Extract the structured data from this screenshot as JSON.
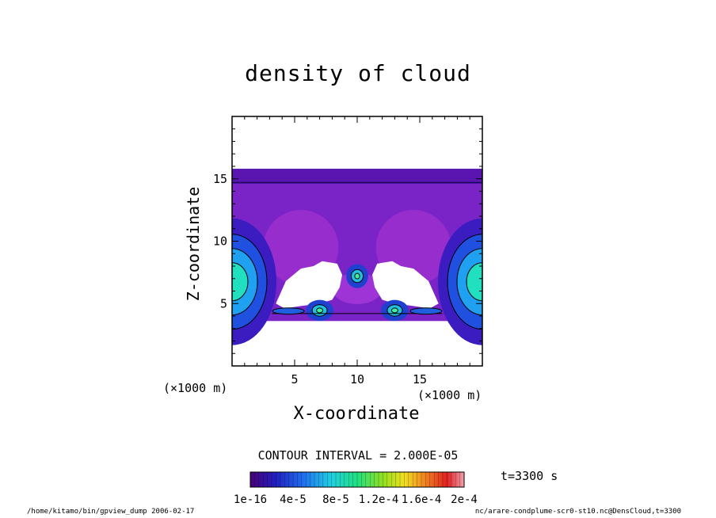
{
  "chart_data": {
    "type": "heatmap",
    "title": "density of cloud",
    "xlabel": "X-coordinate",
    "ylabel": "Z-coordinate",
    "x_unit": "(×1000 m)",
    "y_unit": "(×1000 m)",
    "xlim": [
      0,
      20
    ],
    "ylim": [
      0,
      20
    ],
    "x_ticks": [
      5,
      10,
      15
    ],
    "y_ticks": [
      5,
      10,
      15
    ],
    "contour_interval_text": "CONTOUR INTERVAL = 2.000E-05",
    "time_text": "t=3300 s",
    "colorbar": {
      "tick_labels": [
        "1e-16",
        "4e-5",
        "8e-5",
        "1.2e-4",
        "1.6e-4",
        "2e-4"
      ],
      "range": [
        0,
        0.0002
      ]
    },
    "regions": [
      {
        "name": "cloud layer",
        "x": [
          0,
          20
        ],
        "z": [
          3.6,
          15.8
        ],
        "value": 1.2e-05
      },
      {
        "name": "left edge core",
        "x": [
          0,
          2.2
        ],
        "z": [
          4.5,
          9.0
        ],
        "value": 9e-05
      },
      {
        "name": "right edge core",
        "x": [
          17.8,
          20
        ],
        "z": [
          4.5,
          9.0
        ],
        "value": 9e-05
      },
      {
        "name": "center core",
        "x": [
          9.6,
          10.4
        ],
        "z": [
          6.8,
          7.6
        ],
        "value": 0.0001
      },
      {
        "name": "left low core",
        "x": [
          6.5,
          7.5
        ],
        "z": [
          4.1,
          4.8
        ],
        "value": 9e-05
      },
      {
        "name": "right low core",
        "x": [
          12.5,
          13.5
        ],
        "z": [
          4.1,
          4.8
        ],
        "value": 9e-05
      }
    ],
    "grid": false
  },
  "footer": {
    "left": "/home/kitamo/bin/gpview_dump  2006-02-17",
    "right": "nc/arare-condplume-scr0-st10.nc@DensCloud,t=3300"
  }
}
